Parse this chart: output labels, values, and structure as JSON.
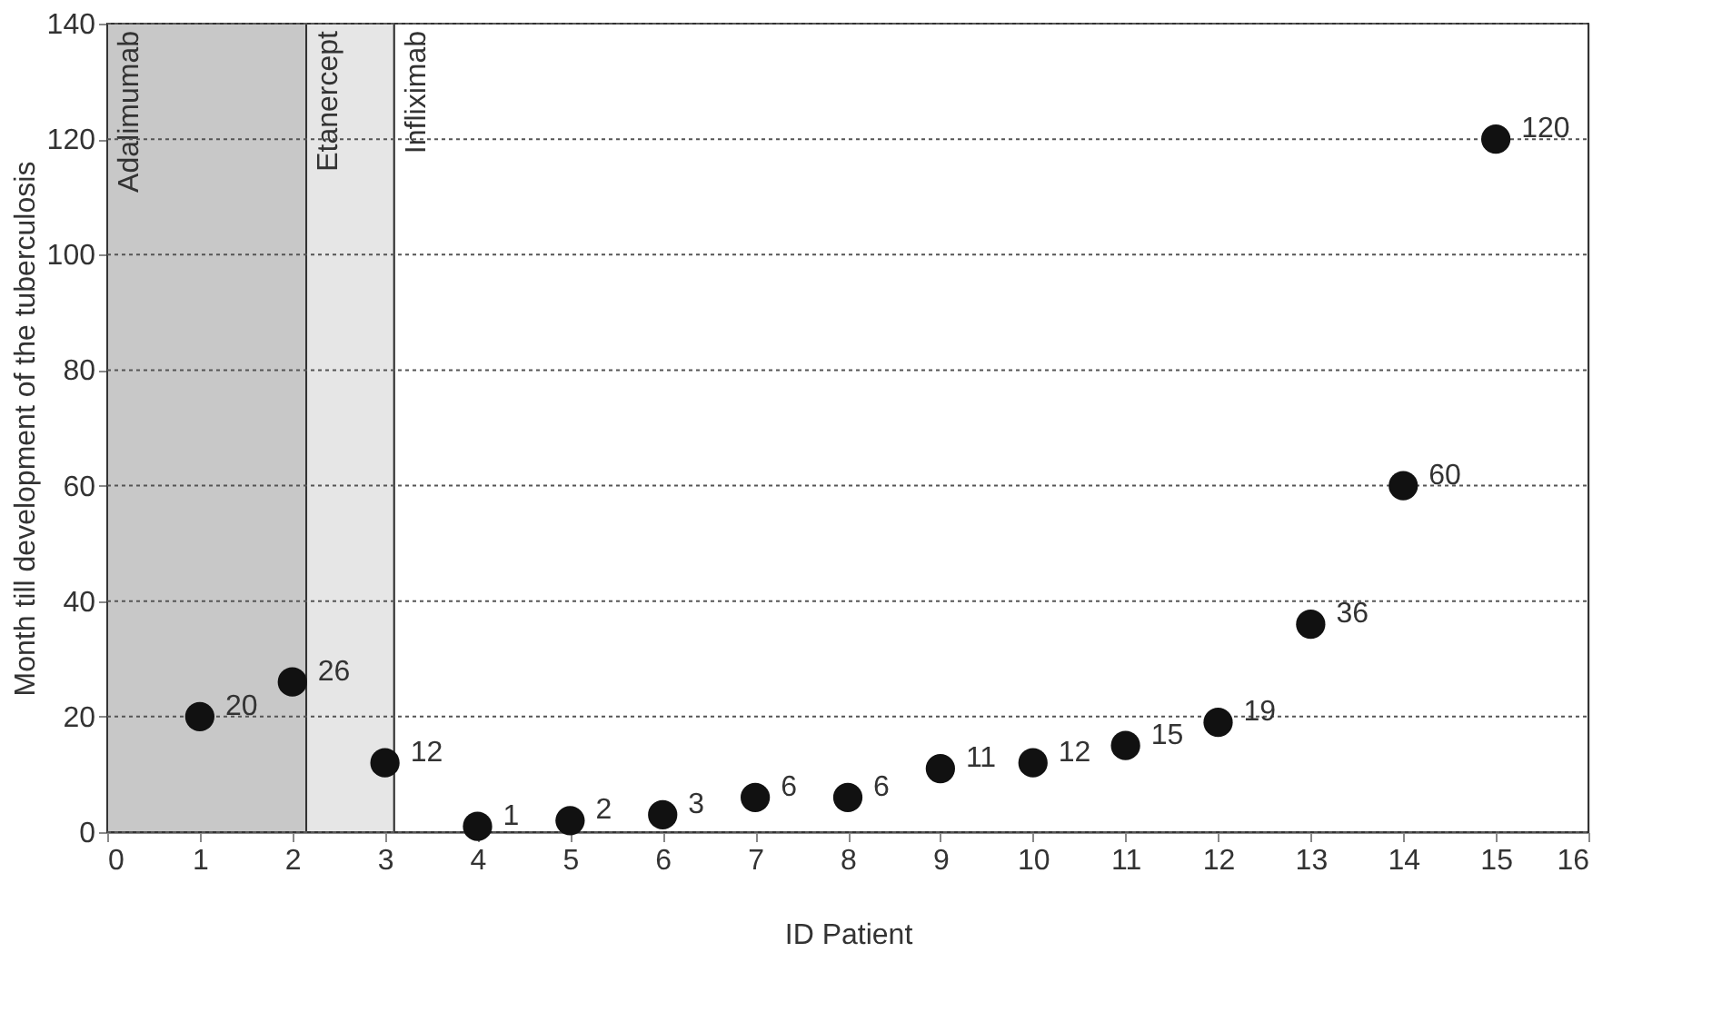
{
  "chart_data": {
    "type": "scatter",
    "xlabel": "ID Patient",
    "ylabel": "Month till development of the tuberculosis",
    "x": [
      1,
      2,
      3,
      4,
      5,
      6,
      7,
      8,
      9,
      10,
      11,
      12,
      13,
      14,
      15
    ],
    "series": [
      {
        "color": "#111111",
        "values": [
          20,
          26,
          12,
          1,
          2,
          3,
          6,
          6,
          11,
          12,
          15,
          19,
          36,
          60,
          120
        ]
      }
    ],
    "data_labels": true,
    "marker": "circle",
    "xlim": [
      0,
      16
    ],
    "xticks": [
      0,
      1,
      2,
      3,
      4,
      5,
      6,
      7,
      8,
      9,
      10,
      11,
      12,
      13,
      14,
      15,
      16
    ],
    "ylim": [
      0,
      140
    ],
    "yticks": [
      0,
      20,
      40,
      60,
      80,
      100,
      120,
      140
    ],
    "grid": "y",
    "legend": false,
    "bands": [
      {
        "axis": "x",
        "from": 0,
        "to": 2.15,
        "label": "Adalimumab",
        "color": "#c8c8c8"
      },
      {
        "axis": "x",
        "from": 2.15,
        "to": 3.1,
        "label": "Etanercept",
        "color": "#e6e6e6"
      },
      {
        "axis": "x",
        "from": 3.1,
        "to": 16,
        "label": "Infliximab",
        "color": "#ffffff"
      }
    ]
  }
}
